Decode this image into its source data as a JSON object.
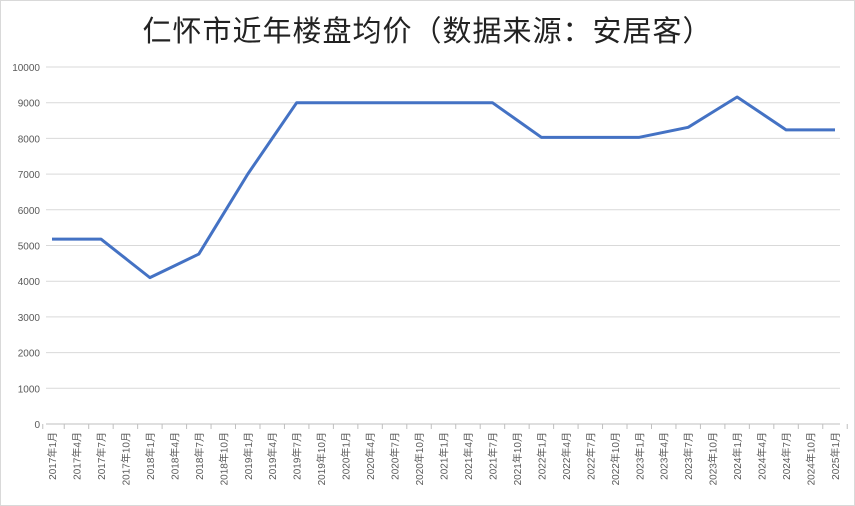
{
  "chart_data": {
    "type": "line",
    "title": "仁怀市近年楼盘均价（数据来源：安居客）",
    "xlabel": "",
    "ylabel": "",
    "ylim": [
      0,
      10000
    ],
    "yticks": [
      0,
      1000,
      2000,
      3000,
      4000,
      5000,
      6000,
      7000,
      8000,
      9000,
      10000
    ],
    "grid": true,
    "legend": "none",
    "color": "#4472c4",
    "categories": [
      "2017年1月",
      "2017年4月",
      "2017年7月",
      "2017年10月",
      "2018年1月",
      "2018年4月",
      "2018年7月",
      "2018年10月",
      "2019年1月",
      "2019年4月",
      "2019年7月",
      "2019年10月",
      "2020年1月",
      "2020年4月",
      "2020年7月",
      "2020年10月",
      "2021年1月",
      "2021年4月",
      "2021年7月",
      "2021年10月",
      "2022年1月",
      "2022年4月",
      "2022年7月",
      "2022年10月",
      "2023年1月",
      "2023年4月",
      "2023年7月",
      "2023年10月",
      "2024年1月",
      "2024年4月",
      "2024年7月",
      "2024年10月",
      "2025年1月"
    ],
    "values": [
      5180,
      5180,
      5180,
      4640,
      4100,
      4430,
      4760,
      5880,
      7000,
      8000,
      9000,
      9000,
      9000,
      9000,
      9000,
      9000,
      9000,
      9000,
      9000,
      8515,
      8030,
      8030,
      8030,
      8030,
      8030,
      8170,
      8310,
      8735,
      9160,
      8700,
      8240,
      8240,
      8240
    ]
  }
}
